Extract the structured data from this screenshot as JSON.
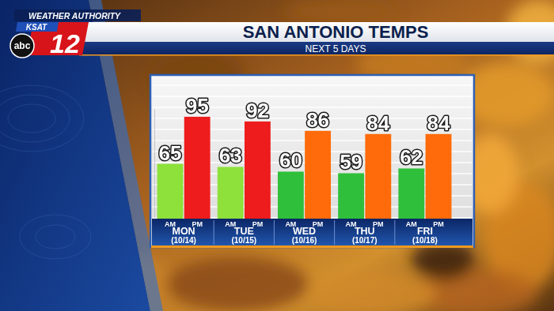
{
  "branding": {
    "tagline": "WEATHER AUTHORITY",
    "station": "KSAT",
    "channel": "12",
    "network": "abc"
  },
  "chart_data": {
    "type": "bar",
    "title": "SAN ANTONIO TEMPS",
    "subtitle": "NEXT 5 DAYS",
    "categories": [
      "MON (10/14)",
      "TUE (10/15)",
      "WED (10/16)",
      "THU (10/17)",
      "FRI (10/18)"
    ],
    "series": [
      {
        "name": "AM",
        "values": [
          65,
          63,
          60,
          59,
          62
        ],
        "colors": [
          "#8ee03a",
          "#8ee03a",
          "#2fbf3a",
          "#2fbf3a",
          "#2fbf3a"
        ]
      },
      {
        "name": "PM",
        "values": [
          95,
          92,
          86,
          84,
          84
        ],
        "colors": [
          "#ee1c1c",
          "#ee1c1c",
          "#ff6b0a",
          "#ff6b0a",
          "#ff6b0a"
        ]
      }
    ],
    "ylim": [
      30,
      100
    ],
    "data_labels": true,
    "tick_labels": "x",
    "grid": false
  }
}
